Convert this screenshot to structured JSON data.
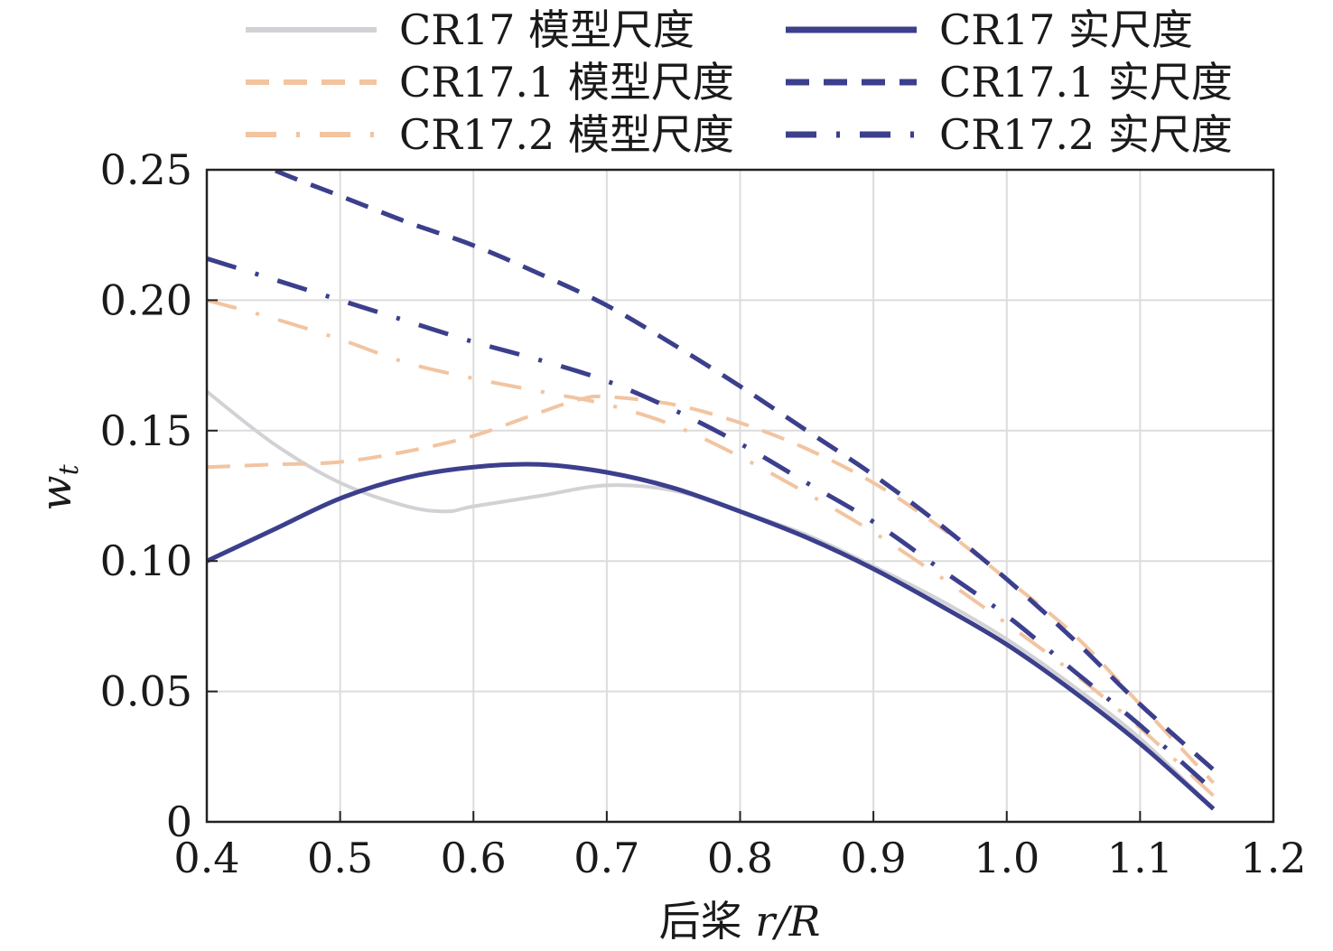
{
  "chart_data": {
    "type": "line",
    "xlabel": "后桨 r/R",
    "xlabel_prefix": "后桨 ",
    "xlabel_var": "r/R",
    "ylabel": "w_t",
    "ylabel_main": "w",
    "ylabel_sub": "t",
    "xlim": [
      0.4,
      1.2
    ],
    "ylim": [
      0,
      0.25
    ],
    "xticks": [
      "0.4",
      "0.5",
      "0.6",
      "0.7",
      "0.8",
      "0.9",
      "1.0",
      "1.1",
      "1.2"
    ],
    "yticks": [
      "0",
      "0.05",
      "0.10",
      "0.15",
      "0.20",
      "0.25"
    ],
    "grid": true,
    "legend_position": "top",
    "series": [
      {
        "name": "CR17 模型尺度",
        "color": "#d2d2d6",
        "dash": "solid",
        "x": [
          0.4,
          0.45,
          0.5,
          0.55,
          0.58,
          0.6,
          0.65,
          0.7,
          0.75,
          0.8,
          0.85,
          0.9,
          0.95,
          1.0,
          1.05,
          1.1,
          1.155
        ],
        "y": [
          0.165,
          0.145,
          0.13,
          0.121,
          0.119,
          0.121,
          0.125,
          0.129,
          0.127,
          0.119,
          0.11,
          0.098,
          0.085,
          0.07,
          0.052,
          0.032,
          0.005
        ]
      },
      {
        "name": "CR17 实尺度",
        "color": "#3b3f8c",
        "dash": "solid",
        "x": [
          0.4,
          0.45,
          0.5,
          0.55,
          0.6,
          0.65,
          0.7,
          0.75,
          0.8,
          0.85,
          0.9,
          0.95,
          1.0,
          1.05,
          1.1,
          1.155
        ],
        "y": [
          0.1,
          0.112,
          0.124,
          0.132,
          0.136,
          0.137,
          0.134,
          0.128,
          0.119,
          0.109,
          0.097,
          0.083,
          0.068,
          0.05,
          0.03,
          0.005
        ]
      },
      {
        "name": "CR17.1 模型尺度",
        "color": "#f2c4a0",
        "dash": "dashed",
        "x": [
          0.4,
          0.45,
          0.5,
          0.55,
          0.6,
          0.65,
          0.68,
          0.7,
          0.75,
          0.8,
          0.85,
          0.9,
          0.95,
          1.0,
          1.05,
          1.1,
          1.155
        ],
        "y": [
          0.136,
          0.137,
          0.138,
          0.142,
          0.148,
          0.157,
          0.162,
          0.163,
          0.16,
          0.153,
          0.143,
          0.13,
          0.113,
          0.093,
          0.072,
          0.045,
          0.015
        ]
      },
      {
        "name": "CR17.1 实尺度",
        "color": "#3b3f8c",
        "dash": "dashed",
        "x": [
          0.4,
          0.45,
          0.5,
          0.55,
          0.6,
          0.65,
          0.7,
          0.75,
          0.8,
          0.85,
          0.9,
          0.95,
          1.0,
          1.05,
          1.1,
          1.155
        ],
        "y": [
          0.262,
          0.25,
          0.24,
          0.23,
          0.221,
          0.21,
          0.198,
          0.183,
          0.167,
          0.15,
          0.133,
          0.114,
          0.093,
          0.07,
          0.045,
          0.02
        ]
      },
      {
        "name": "CR17.2 模型尺度",
        "color": "#f2c4a0",
        "dash": "dashdot",
        "x": [
          0.4,
          0.45,
          0.5,
          0.55,
          0.6,
          0.65,
          0.7,
          0.75,
          0.8,
          0.85,
          0.9,
          0.95,
          1.0,
          1.05,
          1.1,
          1.155
        ],
        "y": [
          0.2,
          0.193,
          0.185,
          0.176,
          0.17,
          0.165,
          0.16,
          0.152,
          0.14,
          0.126,
          0.111,
          0.094,
          0.076,
          0.057,
          0.036,
          0.01
        ]
      },
      {
        "name": "CR17.2 实尺度",
        "color": "#3b3f8c",
        "dash": "dashdot",
        "x": [
          0.4,
          0.45,
          0.5,
          0.55,
          0.6,
          0.65,
          0.7,
          0.75,
          0.8,
          0.85,
          0.9,
          0.95,
          1.0,
          1.05,
          1.1,
          1.155
        ],
        "y": [
          0.216,
          0.208,
          0.2,
          0.192,
          0.184,
          0.177,
          0.169,
          0.158,
          0.145,
          0.13,
          0.115,
          0.097,
          0.079,
          0.058,
          0.037,
          0.012
        ]
      }
    ]
  }
}
